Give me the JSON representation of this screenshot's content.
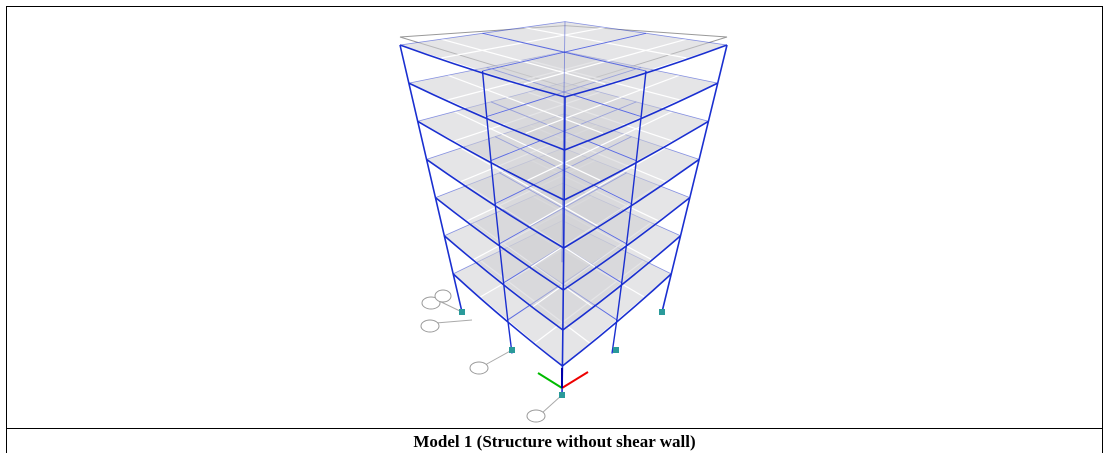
{
  "caption": "Model 1 (Structure without shear wall)"
}
